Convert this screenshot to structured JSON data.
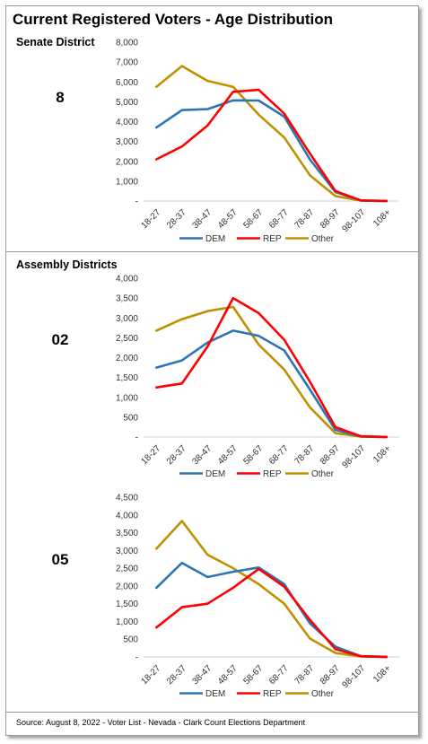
{
  "title": "Current Registered Voters - Age Distribution",
  "sections": {
    "senate_label": "Senate District",
    "assembly_label": "Assembly Districts"
  },
  "source": "Source: August 8, 2022 - Voter List - Nevada - Clark Count Elections Department",
  "colors": {
    "DEM": "#2e75b6",
    "REP": "#ff0000",
    "Other": "#bf9000"
  },
  "chart_data": [
    {
      "type": "line",
      "district": "8",
      "categories": [
        "18-27",
        "28-37",
        "38-47",
        "48-57",
        "58-67",
        "68-77",
        "78-87",
        "88-97",
        "98-107",
        "108+"
      ],
      "y_ticks": [
        "-",
        "1,000",
        "2,000",
        "3,000",
        "4,000",
        "5,000",
        "6,000",
        "7,000",
        "8,000"
      ],
      "ylim": [
        0,
        8000
      ],
      "series": [
        {
          "name": "DEM",
          "values": [
            3700,
            4580,
            4630,
            5070,
            5060,
            4250,
            2100,
            450,
            30,
            5
          ]
        },
        {
          "name": "REP",
          "values": [
            2100,
            2750,
            3800,
            5500,
            5600,
            4400,
            2400,
            500,
            30,
            5
          ]
        },
        {
          "name": "Other",
          "values": [
            5750,
            6800,
            6050,
            5750,
            4350,
            3200,
            1300,
            250,
            20,
            3
          ]
        }
      ],
      "legend": "bottom"
    },
    {
      "type": "line",
      "district": "02",
      "categories": [
        "18-27",
        "28-37",
        "38-47",
        "48-57",
        "58-67",
        "68-77",
        "78-87",
        "88-97",
        "98-107",
        "108+"
      ],
      "y_ticks": [
        "-",
        "500",
        "1,000",
        "1,500",
        "2,000",
        "2,500",
        "3,000",
        "3,500",
        "4,000"
      ],
      "ylim": [
        0,
        4000
      ],
      "series": [
        {
          "name": "DEM",
          "values": [
            1750,
            1930,
            2380,
            2680,
            2550,
            2180,
            1200,
            180,
            15,
            3
          ]
        },
        {
          "name": "REP",
          "values": [
            1250,
            1350,
            2280,
            3500,
            3120,
            2450,
            1400,
            250,
            20,
            3
          ]
        },
        {
          "name": "Other",
          "values": [
            2680,
            2970,
            3170,
            3280,
            2330,
            1700,
            750,
            100,
            10,
            2
          ]
        }
      ],
      "legend": "bottom"
    },
    {
      "type": "line",
      "district": "05",
      "categories": [
        "18-27",
        "28-37",
        "38-47",
        "48-57",
        "58-67",
        "68-77",
        "78-87",
        "88-97",
        "98-107",
        "108+"
      ],
      "y_ticks": [
        "-",
        "500",
        "1,000",
        "1,500",
        "2,000",
        "2,500",
        "3,000",
        "3,500",
        "4,000",
        "4,500"
      ],
      "ylim": [
        0,
        4500
      ],
      "series": [
        {
          "name": "DEM",
          "values": [
            1950,
            2650,
            2250,
            2400,
            2520,
            2050,
            950,
            290,
            20,
            3
          ]
        },
        {
          "name": "REP",
          "values": [
            830,
            1400,
            1500,
            1950,
            2480,
            1980,
            1050,
            220,
            20,
            3
          ]
        },
        {
          "name": "Other",
          "values": [
            3050,
            3830,
            2880,
            2500,
            2050,
            1500,
            520,
            110,
            15,
            3
          ]
        }
      ],
      "legend": "bottom"
    }
  ]
}
